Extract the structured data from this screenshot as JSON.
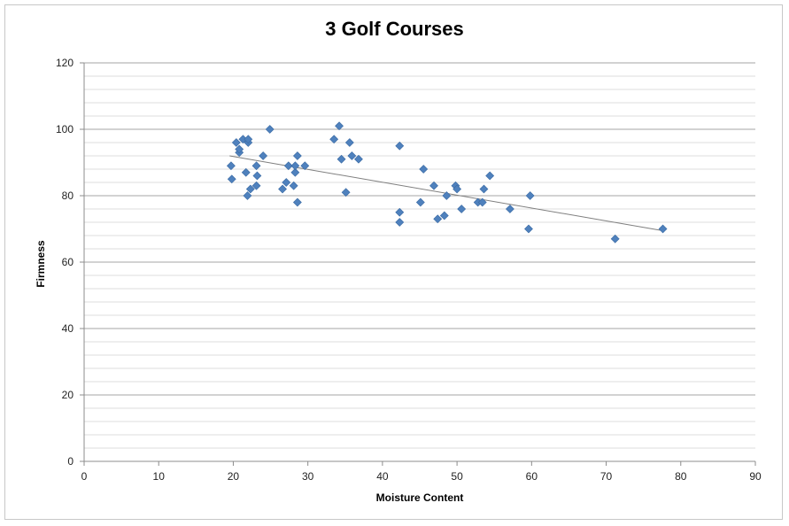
{
  "chart_data": {
    "type": "scatter",
    "title": "3 Golf Courses",
    "xlabel": "Moisture Content",
    "ylabel": "Firmness",
    "xlim": [
      0,
      90
    ],
    "ylim": [
      0,
      120
    ],
    "x_ticks": [
      "0",
      "10",
      "20",
      "30",
      "40",
      "50",
      "60",
      "70",
      "80",
      "90"
    ],
    "y_ticks": [
      "0",
      "20",
      "40",
      "60",
      "80",
      "100",
      "120"
    ],
    "grid": true,
    "marker": "diamond",
    "marker_color": "#4f81bd",
    "trendline": {
      "type": "linear",
      "x": [
        19.5,
        77.5
      ],
      "y": [
        92,
        69.5
      ],
      "color": "#7f7f7f"
    },
    "points": [
      [
        19.7,
        89
      ],
      [
        19.8,
        85
      ],
      [
        20.4,
        96
      ],
      [
        20.8,
        93
      ],
      [
        20.8,
        94
      ],
      [
        21.3,
        97
      ],
      [
        21.7,
        87
      ],
      [
        21.9,
        80
      ],
      [
        22.0,
        96
      ],
      [
        22.0,
        97
      ],
      [
        22.3,
        82
      ],
      [
        23.1,
        83
      ],
      [
        23.1,
        89
      ],
      [
        23.2,
        86
      ],
      [
        24.0,
        92
      ],
      [
        24.9,
        100
      ],
      [
        26.6,
        82
      ],
      [
        27.1,
        84
      ],
      [
        27.4,
        89
      ],
      [
        28.1,
        83
      ],
      [
        28.3,
        87
      ],
      [
        28.3,
        89
      ],
      [
        28.6,
        92
      ],
      [
        28.6,
        78
      ],
      [
        29.6,
        89
      ],
      [
        33.5,
        97
      ],
      [
        34.2,
        101
      ],
      [
        34.5,
        91
      ],
      [
        35.1,
        81
      ],
      [
        35.6,
        96
      ],
      [
        35.9,
        92
      ],
      [
        36.8,
        91
      ],
      [
        42.3,
        95
      ],
      [
        42.3,
        75
      ],
      [
        42.3,
        72
      ],
      [
        45.1,
        78
      ],
      [
        45.5,
        88
      ],
      [
        46.9,
        83
      ],
      [
        47.4,
        73
      ],
      [
        48.3,
        74
      ],
      [
        48.6,
        80
      ],
      [
        49.8,
        83
      ],
      [
        50.0,
        82
      ],
      [
        50.6,
        76
      ],
      [
        52.8,
        78
      ],
      [
        53.4,
        78
      ],
      [
        53.6,
        82
      ],
      [
        54.4,
        86
      ],
      [
        57.1,
        76
      ],
      [
        59.6,
        70
      ],
      [
        59.8,
        80
      ],
      [
        71.2,
        67
      ],
      [
        77.6,
        70
      ]
    ]
  }
}
